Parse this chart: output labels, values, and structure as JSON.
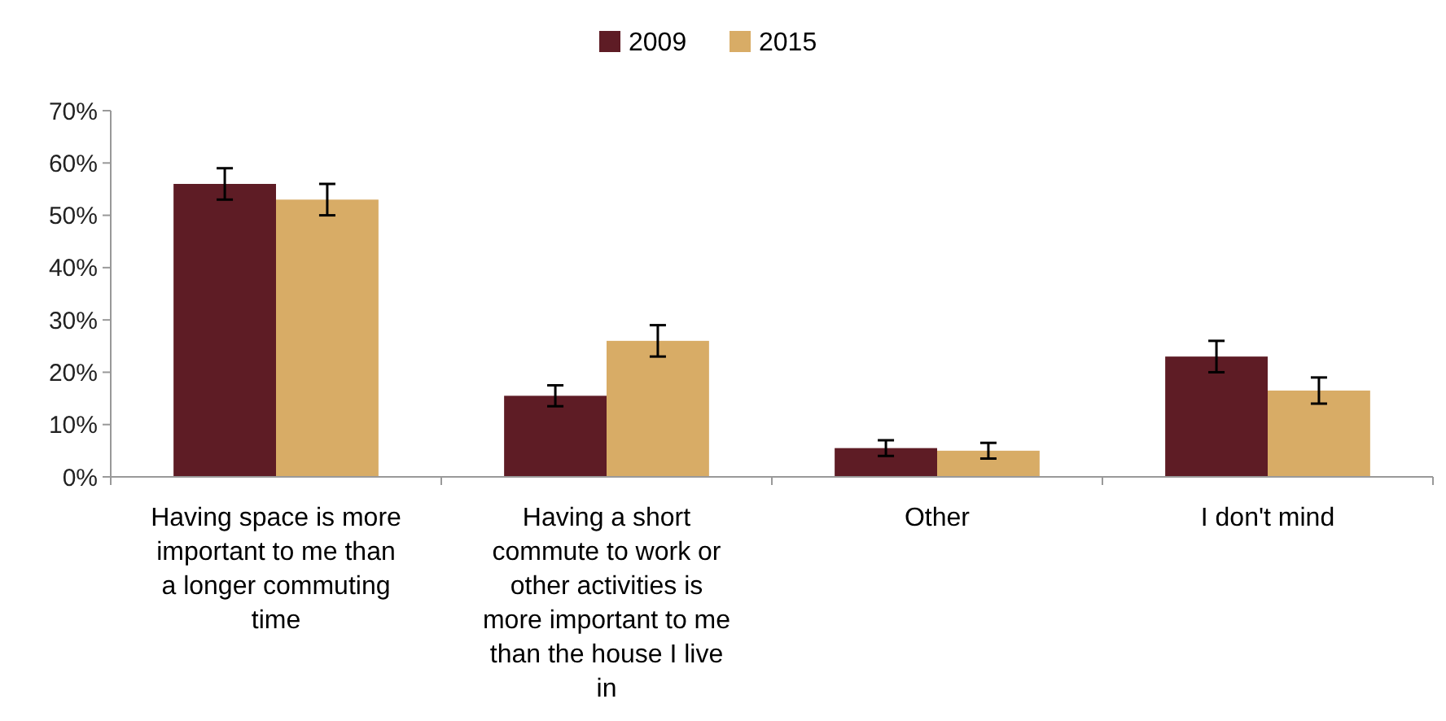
{
  "chart_data": {
    "type": "bar",
    "categories": [
      "Having space is more important to me than a longer commuting time",
      "Having a short commute to work or other activities is more important to me than the house I live in",
      "Other",
      "I don't mind"
    ],
    "series": [
      {
        "name": "2009",
        "color": "#5e1c25",
        "values": [
          56,
          15.5,
          5.5,
          23
        ],
        "errors": [
          3,
          2,
          1.5,
          3
        ]
      },
      {
        "name": "2015",
        "color": "#d8ac66",
        "values": [
          53,
          26,
          5,
          16.5
        ],
        "errors": [
          3,
          3,
          1.5,
          2.5
        ]
      }
    ],
    "ylim": [
      0,
      70
    ],
    "yticks": [
      {
        "value": 0,
        "label": "0%"
      },
      {
        "value": 10,
        "label": "10%"
      },
      {
        "value": 20,
        "label": "20%"
      },
      {
        "value": 30,
        "label": "30%"
      },
      {
        "value": 40,
        "label": "40%"
      },
      {
        "value": 50,
        "label": "50%"
      },
      {
        "value": 60,
        "label": "60%"
      },
      {
        "value": 70,
        "label": "70%"
      }
    ],
    "grid": false,
    "legend": "top"
  }
}
